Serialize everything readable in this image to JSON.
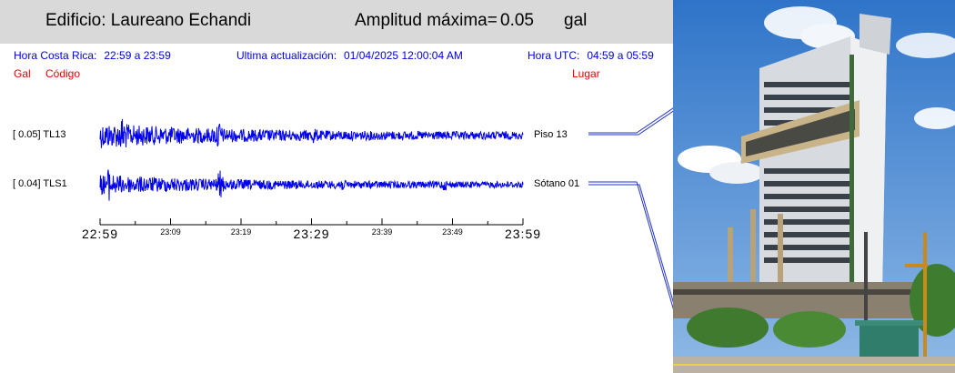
{
  "header": {
    "building": "Edificio: Laureano Echandi",
    "amplitude_label": "Amplitud máxima=",
    "amplitude_value": "0.05",
    "amplitude_unit": "gal"
  },
  "info": {
    "local_time_label": "Hora Costa Rica:",
    "local_time_range": "22:59 a 23:59",
    "last_update_label": "Ultima actualización:",
    "last_update_value": "01/04/2025 12:00:04 AM",
    "utc_label": "Hora UTC:",
    "utc_range": "04:59 a 05:59"
  },
  "columns": {
    "gal": "Gal",
    "code": "Código",
    "place": "Lugar"
  },
  "channels": [
    {
      "label": "[  0.05] TL13",
      "place": "Piso 13",
      "amplitude": 0.05
    },
    {
      "label": "[  0.04] TLS1",
      "place": "Sótano 01",
      "amplitude": 0.04
    }
  ],
  "time_axis": {
    "major": [
      "22:59",
      "23:29",
      "23:59"
    ],
    "minor": [
      "23:09",
      "23:19",
      "23:39",
      "23:49"
    ]
  },
  "colors": {
    "trace": "#0000ee",
    "header_bg": "#d9d9d9",
    "accent_red": "#ee0000"
  }
}
